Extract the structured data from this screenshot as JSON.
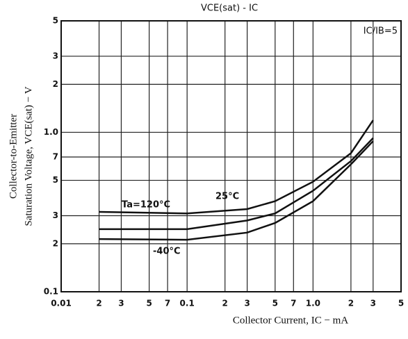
{
  "chart_data": {
    "type": "line",
    "title": "VCE(sat) - IC",
    "xlabel": "Collector Current, IC − mA",
    "ylabel": [
      "Collector-to-Emitter",
      "Saturation Voltage, VCE(sat) − V"
    ],
    "annotation": "IC/IB=5",
    "xscale": "log",
    "yscale": "log",
    "grid": true,
    "xlim": [
      0.01,
      5
    ],
    "ylim": [
      0.1,
      5
    ],
    "xticks": [
      0.01,
      {
        "value": 0.02,
        "label": "2"
      },
      {
        "value": 0.03,
        "label": "3"
      },
      {
        "value": 0.05,
        "label": "5"
      },
      {
        "value": 0.07,
        "label": "7"
      },
      0.1,
      {
        "value": 0.2,
        "label": "2"
      },
      {
        "value": 0.3,
        "label": "3"
      },
      {
        "value": 0.5,
        "label": "5"
      },
      {
        "value": 0.7,
        "label": "7"
      },
      {
        "value": 1,
        "label": "1.0"
      },
      {
        "value": 2,
        "label": "2"
      },
      {
        "value": 3,
        "label": "3"
      },
      {
        "value": 5,
        "label": "5"
      }
    ],
    "yticks": [
      0.1,
      {
        "value": 0.2,
        "label": "2"
      },
      {
        "value": 0.3,
        "label": "3"
      },
      {
        "value": 0.5,
        "label": "5"
      },
      {
        "value": 0.7,
        "label": "7"
      },
      {
        "value": 1,
        "label": "1.0"
      },
      {
        "value": 2,
        "label": "2"
      },
      {
        "value": 3,
        "label": "3"
      },
      {
        "value": 5,
        "label": "5"
      }
    ],
    "x": [
      0.02,
      0.1,
      0.3,
      0.5,
      1,
      2,
      3
    ],
    "series": [
      {
        "name": "Ta=120°C",
        "color": "#111111",
        "values": [
          0.317,
          0.31,
          0.33,
          0.37,
          0.49,
          0.74,
          1.19
        ]
      },
      {
        "name": "25°C",
        "color": "#111111",
        "values": [
          0.247,
          0.247,
          0.28,
          0.31,
          0.43,
          0.66,
          0.92
        ]
      },
      {
        "name": "-40°C",
        "color": "#111111",
        "values": [
          0.214,
          0.212,
          0.235,
          0.27,
          0.37,
          0.63,
          0.88
        ]
      }
    ]
  }
}
